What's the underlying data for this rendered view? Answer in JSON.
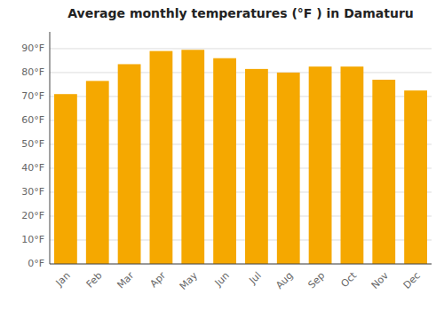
{
  "chart_data": {
    "type": "bar",
    "title": "Average monthly temperatures (°F ) in Damaturu",
    "categories": [
      "Jan",
      "Feb",
      "Mar",
      "Apr",
      "May",
      "Jun",
      "Jul",
      "Aug",
      "Sep",
      "Oct",
      "Nov",
      "Dec"
    ],
    "values": [
      71,
      76.5,
      83.5,
      89,
      89.5,
      86,
      81.5,
      80,
      82.5,
      82.5,
      77,
      72.5
    ],
    "color": "#F5A800",
    "ylim": [
      0,
      97
    ],
    "yticks": [
      {
        "value": 0,
        "label": "0°F"
      },
      {
        "value": 10,
        "label": "10°F"
      },
      {
        "value": 20,
        "label": "20°F"
      },
      {
        "value": 30,
        "label": "30°F"
      },
      {
        "value": 40,
        "label": "40°F"
      },
      {
        "value": 50,
        "label": "50°F"
      },
      {
        "value": 60,
        "label": "60°F"
      },
      {
        "value": 70,
        "label": "70°F"
      },
      {
        "value": 80,
        "label": "80°F"
      },
      {
        "value": 90,
        "label": "90°F"
      }
    ],
    "grid": true
  }
}
